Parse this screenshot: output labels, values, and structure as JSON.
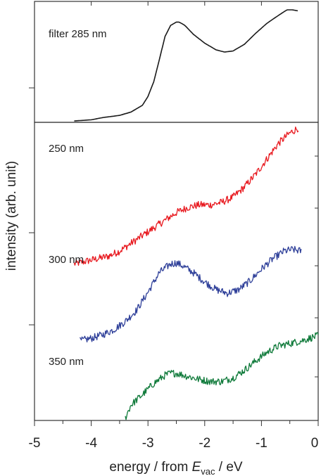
{
  "chart_data": [
    {
      "type": "line",
      "panel": "top",
      "annotation": "filter 285 nm",
      "xlim": [
        -5,
        0
      ],
      "y_scale": "arb. unit",
      "colors": {
        "filter 285 nm": "#1a1a1a"
      },
      "series": [
        {
          "name": "filter 285 nm",
          "x": [
            -4.3,
            -4.0,
            -3.8,
            -3.5,
            -3.3,
            -3.1,
            -3.0,
            -2.9,
            -2.8,
            -2.7,
            -2.6,
            -2.5,
            -2.45,
            -2.35,
            -2.2,
            -2.0,
            -1.8,
            -1.65,
            -1.5,
            -1.3,
            -1.1,
            -0.9,
            -0.7,
            -0.55,
            -0.45,
            -0.35
          ],
          "y": [
            0.0,
            0.01,
            0.03,
            0.05,
            0.08,
            0.14,
            0.22,
            0.35,
            0.55,
            0.76,
            0.86,
            0.89,
            0.89,
            0.86,
            0.78,
            0.7,
            0.64,
            0.62,
            0.63,
            0.69,
            0.79,
            0.88,
            0.95,
            1.0,
            1.0,
            0.99
          ]
        }
      ]
    },
    {
      "type": "line",
      "panel": "bottom",
      "xlim": [
        -5,
        0
      ],
      "y_scale": "arb. unit",
      "colors": {
        "250 nm": "#e8191f",
        "300 nm": "#2e3f99",
        "350 nm": "#0f7a3a"
      },
      "series": [
        {
          "name": "250 nm",
          "x": [
            -4.3,
            -4.1,
            -3.9,
            -3.7,
            -3.5,
            -3.3,
            -3.1,
            -2.9,
            -2.7,
            -2.5,
            -2.3,
            -2.1,
            -1.9,
            -1.7,
            -1.5,
            -1.3,
            -1.1,
            -0.9,
            -0.7,
            -0.5,
            -0.35
          ],
          "y": [
            3.05,
            3.1,
            3.15,
            3.2,
            3.3,
            3.45,
            3.6,
            3.75,
            3.9,
            4.05,
            4.15,
            4.2,
            4.2,
            4.25,
            4.35,
            4.55,
            4.8,
            5.1,
            5.4,
            5.6,
            5.7
          ]
        },
        {
          "name": "300 nm",
          "x": [
            -4.2,
            -4.0,
            -3.8,
            -3.6,
            -3.4,
            -3.2,
            -3.0,
            -2.8,
            -2.6,
            -2.5,
            -2.4,
            -2.2,
            -2.0,
            -1.8,
            -1.6,
            -1.4,
            -1.2,
            -1.0,
            -0.8,
            -0.6,
            -0.45,
            -0.3
          ],
          "y": [
            1.55,
            1.6,
            1.67,
            1.77,
            1.93,
            2.15,
            2.5,
            2.88,
            3.05,
            3.07,
            3.02,
            2.88,
            2.7,
            2.55,
            2.48,
            2.55,
            2.72,
            2.95,
            3.15,
            3.3,
            3.33,
            3.3
          ]
        },
        {
          "name": "350 nm",
          "x": [
            -3.4,
            -3.3,
            -3.1,
            -2.9,
            -2.7,
            -2.6,
            -2.5,
            -2.3,
            -2.1,
            -1.9,
            -1.7,
            -1.5,
            -1.3,
            -1.1,
            -0.9,
            -0.7,
            -0.5,
            -0.3,
            -0.1,
            0.0
          ],
          "y": [
            0.05,
            0.3,
            0.5,
            0.72,
            0.88,
            0.92,
            0.92,
            0.86,
            0.8,
            0.76,
            0.76,
            0.83,
            0.98,
            1.16,
            1.33,
            1.45,
            1.5,
            1.55,
            1.62,
            1.65
          ]
        }
      ]
    }
  ],
  "labels": {
    "filter": "filter 285 nm",
    "s250": "250 nm",
    "s300": "300 nm",
    "s350": "350 nm"
  },
  "axes": {
    "x_ticks": [
      "-5",
      "-4",
      "-3",
      "-2",
      "-1",
      "0"
    ],
    "ylabel": "intensity (arb. unit)",
    "xlabel_pre": "energy / from ",
    "xlabel_sym": "E",
    "xlabel_sub": "vac",
    "xlabel_post": " / eV"
  }
}
